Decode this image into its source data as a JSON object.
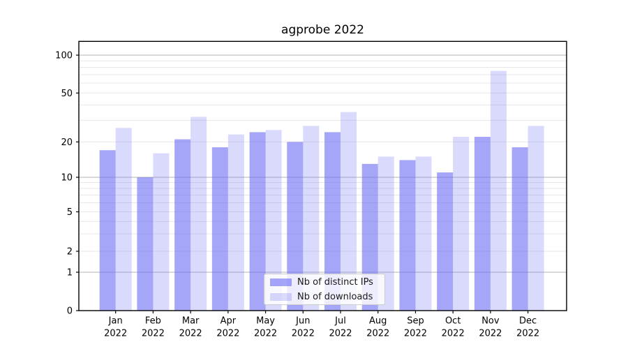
{
  "chart_data": {
    "type": "bar",
    "title": "agprobe 2022",
    "xlabel": "",
    "ylabel": "",
    "yscale": "symlog",
    "ylim": [
      0,
      100
    ],
    "grid": true,
    "legend_position": "bottom-center",
    "yticks": [
      0,
      1,
      2,
      5,
      10,
      20,
      50,
      100
    ],
    "major_grid_values": [
      1,
      10,
      100
    ],
    "minor_grid_values": [
      2,
      3,
      4,
      5,
      6,
      7,
      8,
      9,
      20,
      30,
      40,
      50,
      60,
      70,
      80,
      90
    ],
    "categories": [
      "Jan",
      "Feb",
      "Mar",
      "Apr",
      "May",
      "Jun",
      "Jul",
      "Aug",
      "Sep",
      "Oct",
      "Nov",
      "Dec"
    ],
    "year_label": "2022",
    "series": [
      {
        "name": "Nb of distinct IPs",
        "color": "rgba(106,106,245,0.60)",
        "values": [
          17,
          10,
          21,
          18,
          24,
          20,
          24,
          13,
          14,
          11,
          22,
          18
        ]
      },
      {
        "name": "Nb of downloads",
        "color": "rgba(106,106,245,0.25)",
        "values": [
          26,
          16,
          32,
          23,
          25,
          27,
          35,
          15,
          15,
          22,
          75,
          27
        ]
      }
    ]
  },
  "colors": {
    "grid_minor": "#e7e7e7",
    "grid_major": "#b3b3b3",
    "axis": "#000000",
    "tick_text": "#000000"
  }
}
